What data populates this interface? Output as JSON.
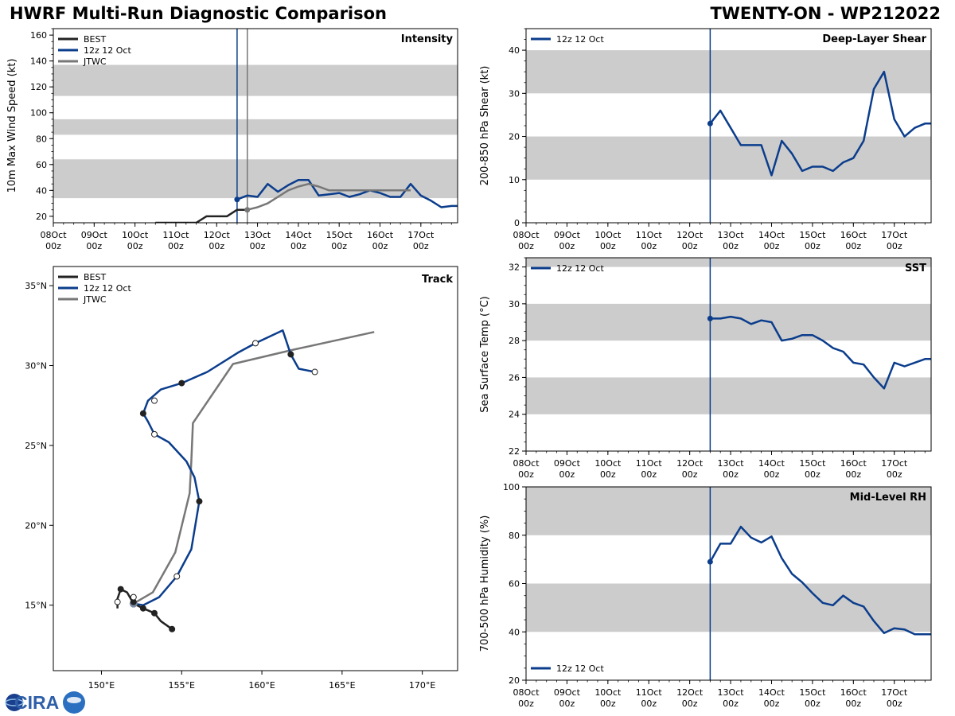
{
  "header": {
    "title_left": "HWRF Multi-Run Diagnostic Comparison",
    "title_right": "TWENTY-ON - WP212022"
  },
  "logo": {
    "text": "CIRA"
  },
  "colors": {
    "best": "#222222",
    "run": "#0b3d8c",
    "jtwc": "#777777",
    "band": "#cccccc"
  },
  "time_axis": {
    "start_day": 8,
    "end_day": 17.9,
    "tick_days": [
      8,
      9,
      10,
      11,
      12,
      13,
      14,
      15,
      16,
      17
    ],
    "tick_labels": [
      "08Oct",
      "09Oct",
      "10Oct",
      "11Oct",
      "12Oct",
      "13Oct",
      "14Oct",
      "15Oct",
      "16Oct",
      "17Oct"
    ],
    "tick_sublabel": "00z"
  },
  "chart_data": [
    {
      "id": "intensity",
      "type": "line",
      "title": "Intensity",
      "ylabel": "10m Max Wind Speed (kt)",
      "ylim": [
        15,
        165
      ],
      "yticks": [
        20,
        40,
        60,
        80,
        100,
        120,
        140,
        160
      ],
      "bands": [
        [
          34,
          64
        ],
        [
          83,
          95
        ],
        [
          113,
          137
        ]
      ],
      "vlines": [
        {
          "x": 12.5,
          "series": "run"
        },
        {
          "x": 12.75,
          "series": "jtwc"
        }
      ],
      "legend": [
        "BEST",
        "12z 12 Oct",
        "JTWC"
      ],
      "series": [
        {
          "name": "BEST",
          "key": "best",
          "x": [
            10.5,
            10.75,
            11,
            11.25,
            11.5,
            11.75,
            12,
            12.25,
            12.5,
            12.75
          ],
          "y": [
            15,
            15,
            15,
            15,
            15,
            20,
            20,
            20,
            25,
            25
          ]
        },
        {
          "name": "12z 12 Oct",
          "key": "run",
          "marker_first": true,
          "x": [
            12.5,
            12.75,
            13,
            13.25,
            13.5,
            13.75,
            14,
            14.25,
            14.5,
            14.75,
            15,
            15.25,
            15.5,
            15.75,
            16,
            16.25,
            16.5,
            16.75,
            17,
            17.25,
            17.5,
            17.75,
            17.9
          ],
          "y": [
            33,
            36,
            35,
            45,
            39,
            44,
            48,
            48,
            36,
            37,
            38,
            35,
            37,
            40,
            38,
            35,
            35,
            45,
            36,
            32,
            27,
            28,
            28
          ]
        },
        {
          "name": "JTWC",
          "key": "jtwc",
          "marker_first": true,
          "x": [
            12.75,
            13,
            13.25,
            13.5,
            13.75,
            14,
            14.25,
            14.5,
            14.75,
            15,
            16,
            16.75
          ],
          "y": [
            25,
            27,
            30,
            35,
            40,
            43,
            45,
            43,
            40,
            40,
            40,
            40
          ]
        }
      ]
    },
    {
      "id": "shear",
      "type": "line",
      "title": "Deep-Layer Shear",
      "ylabel": "200-850 hPa Shear (kt)",
      "ylim": [
        0,
        45
      ],
      "yticks": [
        0,
        10,
        20,
        30,
        40
      ],
      "bands": [
        [
          10,
          20
        ],
        [
          30,
          40
        ]
      ],
      "vlines": [
        {
          "x": 12.5,
          "series": "run"
        }
      ],
      "legend": [
        "12z 12 Oct"
      ],
      "series": [
        {
          "name": "12z 12 Oct",
          "key": "run",
          "marker_first": true,
          "x": [
            12.5,
            12.75,
            13,
            13.25,
            13.5,
            13.75,
            14,
            14.25,
            14.5,
            14.75,
            15,
            15.25,
            15.5,
            15.75,
            16,
            16.25,
            16.5,
            16.75,
            17,
            17.25,
            17.5,
            17.75,
            17.9
          ],
          "y": [
            23,
            26,
            22,
            18,
            18,
            18,
            11,
            19,
            16,
            12,
            13,
            13,
            12,
            14,
            15,
            19,
            31,
            35,
            24,
            20,
            22,
            23,
            23
          ]
        }
      ]
    },
    {
      "id": "sst",
      "type": "line",
      "title": "SST",
      "ylabel": "Sea Surface Temp (°C)",
      "ylim": [
        22,
        32.5
      ],
      "yticks": [
        22,
        24,
        26,
        28,
        30,
        32
      ],
      "bands": [
        [
          24,
          26
        ],
        [
          28,
          30
        ],
        [
          32,
          33
        ]
      ],
      "vlines": [
        {
          "x": 12.5,
          "series": "run"
        }
      ],
      "legend": [
        "12z 12 Oct"
      ],
      "series": [
        {
          "name": "12z 12 Oct",
          "key": "run",
          "marker_first": true,
          "x": [
            12.5,
            12.75,
            13,
            13.25,
            13.5,
            13.75,
            14,
            14.25,
            14.5,
            14.75,
            15,
            15.25,
            15.5,
            15.75,
            16,
            16.25,
            16.5,
            16.75,
            17,
            17.25,
            17.5,
            17.75,
            17.9
          ],
          "y": [
            29.2,
            29.2,
            29.3,
            29.2,
            28.9,
            29.1,
            29.0,
            28.0,
            28.1,
            28.3,
            28.3,
            28.0,
            27.6,
            27.4,
            26.8,
            26.7,
            26.0,
            25.4,
            26.8,
            26.6,
            26.8,
            27.0,
            27.0
          ]
        }
      ]
    },
    {
      "id": "rh",
      "type": "line",
      "title": "Mid-Level RH",
      "ylabel": "700-500 hPa Humidity (%)",
      "ylim": [
        20,
        100
      ],
      "yticks": [
        20,
        40,
        60,
        80,
        100
      ],
      "bands": [
        [
          40,
          60
        ],
        [
          80,
          100
        ]
      ],
      "vlines": [
        {
          "x": 12.5,
          "series": "run"
        }
      ],
      "legend": [
        "12z 12 Oct"
      ],
      "series": [
        {
          "name": "12z 12 Oct",
          "key": "run",
          "marker_first": true,
          "x": [
            12.5,
            12.75,
            13,
            13.25,
            13.5,
            13.75,
            14,
            14.25,
            14.5,
            14.75,
            15,
            15.25,
            15.5,
            15.75,
            16,
            16.25,
            16.5,
            16.75,
            17,
            17.25,
            17.5,
            17.75,
            17.9
          ],
          "y": [
            69,
            76.5,
            76.5,
            83.5,
            79,
            77,
            79.5,
            70.5,
            64,
            60.5,
            56,
            52,
            51,
            55,
            52,
            50.5,
            44.5,
            39.5,
            41.5,
            41,
            39,
            39,
            39
          ]
        }
      ]
    },
    {
      "id": "track",
      "type": "scatter",
      "title": "Track",
      "lon_range": [
        147,
        172.2
      ],
      "lat_range": [
        10.9,
        36.2
      ],
      "lon_ticks": [
        150,
        155,
        160,
        165,
        170
      ],
      "lon_tick_labels": [
        "150°E",
        "155°E",
        "160°E",
        "165°E",
        "170°E"
      ],
      "lat_ticks": [
        15,
        20,
        25,
        30,
        35
      ],
      "lat_tick_labels": [
        "15°N",
        "20°N",
        "25°N",
        "30°N",
        "35°N"
      ],
      "legend": [
        "BEST",
        "12z 12 Oct",
        "JTWC"
      ],
      "series": [
        {
          "name": "BEST",
          "key": "best",
          "lon": [
            154.4,
            153.7,
            153.3,
            152.6,
            152.0,
            151.6,
            151.2,
            151.0,
            151.0
          ],
          "lat": [
            13.5,
            14.0,
            14.5,
            14.8,
            15.1,
            15.8,
            16.0,
            15.4,
            14.8
          ],
          "markers": [
            [
              154.4,
              13.5,
              "filled"
            ],
            [
              153.3,
              14.5,
              "filled"
            ],
            [
              152.6,
              14.8,
              "filled"
            ],
            [
              151.2,
              16.0,
              "filled"
            ],
            [
              151.0,
              15.2,
              "open"
            ]
          ]
        },
        {
          "name": "12z 12 Oct",
          "key": "run",
          "lon": [
            152.0,
            152.6,
            153.6,
            154.7,
            155.6,
            156.1,
            155.8,
            155.3,
            154.2,
            153.3,
            152.9,
            152.6,
            152.9,
            153.7,
            155.0,
            156.6,
            158.5,
            159.6,
            161.3,
            161.8,
            162.3,
            163.3
          ],
          "lat": [
            15.1,
            15.0,
            15.5,
            16.8,
            18.5,
            21.5,
            23.0,
            24.0,
            25.2,
            25.7,
            26.5,
            27.0,
            27.8,
            28.5,
            28.9,
            29.6,
            30.8,
            31.4,
            32.2,
            30.7,
            29.8,
            29.6
          ],
          "markers": [
            [
              152.0,
              15.2,
              "filled"
            ],
            [
              152.0,
              15.5,
              "open"
            ],
            [
              154.7,
              16.8,
              "open"
            ],
            [
              156.1,
              21.5,
              "filled"
            ],
            [
              153.3,
              25.7,
              "open"
            ],
            [
              152.6,
              27.0,
              "filled"
            ],
            [
              153.3,
              27.8,
              "open"
            ],
            [
              155.0,
              28.9,
              "filled"
            ],
            [
              159.6,
              31.4,
              "open"
            ],
            [
              161.8,
              30.7,
              "filled"
            ],
            [
              163.3,
              29.6,
              "open"
            ]
          ]
        },
        {
          "name": "JTWC",
          "key": "jtwc",
          "lon": [
            152.0,
            153.2,
            154.6,
            155.5,
            155.6,
            155.7,
            158.2,
            162.0,
            167.0
          ],
          "lat": [
            15.1,
            15.8,
            18.3,
            22.0,
            24.0,
            26.4,
            30.1,
            31.0,
            32.1
          ],
          "markers": [
            [
              152.0,
              15.1,
              "gray"
            ]
          ]
        }
      ]
    }
  ]
}
